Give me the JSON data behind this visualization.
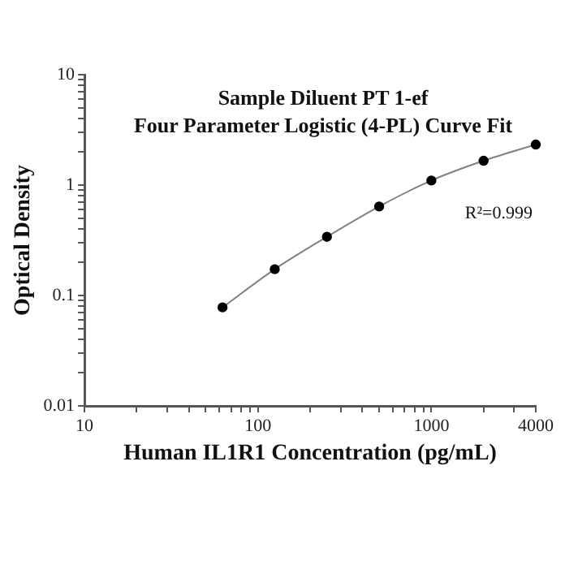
{
  "chart_data": {
    "type": "scatter",
    "title": "Sample Diluent PT 1-ef",
    "subtitle": "Four Parameter Logistic (4-PL) Curve Fit",
    "xlabel": "Human IL1R1 Concentration (pg/mL)",
    "ylabel": "Optical Density",
    "annotations": [
      "R²=0.999"
    ],
    "log": "xy",
    "grid": false,
    "legend": false,
    "marker": "circle",
    "x": [
      62.5,
      125,
      250,
      500,
      1000,
      2000,
      4000
    ],
    "series": [
      {
        "color": "#000000",
        "values": [
          0.078,
          0.173,
          0.34,
          0.64,
          1.1,
          1.66,
          2.33
        ]
      },
      {
        "type": "line",
        "color": "#808080",
        "marker": "none",
        "line_style": "solid",
        "values": [
          0.078,
          0.173,
          0.34,
          0.64,
          1.1,
          1.66,
          2.33
        ]
      }
    ],
    "xlim": [
      10,
      4000
    ],
    "ylim": [
      0.01,
      10
    ],
    "xticks": [
      10,
      {
        "value": 20,
        "label": null
      },
      {
        "value": 30,
        "label": null
      },
      {
        "value": 40,
        "label": null
      },
      {
        "value": 50,
        "label": null
      },
      {
        "value": 60,
        "label": null
      },
      {
        "value": 70,
        "label": null
      },
      {
        "value": 80,
        "label": null
      },
      {
        "value": 90,
        "label": null
      },
      100,
      {
        "value": 200,
        "label": null
      },
      {
        "value": 300,
        "label": null
      },
      {
        "value": 400,
        "label": null
      },
      {
        "value": 500,
        "label": null
      },
      {
        "value": 600,
        "label": null
      },
      {
        "value": 700,
        "label": null
      },
      {
        "value": 800,
        "label": null
      },
      {
        "value": 900,
        "label": null
      },
      1000,
      {
        "value": 2000,
        "label": null
      },
      {
        "value": 3000,
        "label": null
      },
      4000
    ],
    "yticks": [
      0.01,
      {
        "value": 0.02,
        "label": null
      },
      {
        "value": 0.03,
        "label": null
      },
      {
        "value": 0.04,
        "label": null
      },
      {
        "value": 0.05,
        "label": null
      },
      {
        "value": 0.06,
        "label": null
      },
      {
        "value": 0.07,
        "label": null
      },
      {
        "value": 0.08,
        "label": null
      },
      {
        "value": 0.09,
        "label": null
      },
      0.1,
      {
        "value": 0.2,
        "label": null
      },
      {
        "value": 0.3,
        "label": null
      },
      {
        "value": 0.4,
        "label": null
      },
      {
        "value": 0.5,
        "label": null
      },
      {
        "value": 0.6,
        "label": null
      },
      {
        "value": 0.7,
        "label": null
      },
      {
        "value": 0.8,
        "label": null
      },
      {
        "value": 0.9,
        "label": null
      },
      1,
      {
        "value": 2,
        "label": null
      },
      {
        "value": 3,
        "label": null
      },
      {
        "value": 4,
        "label": null
      },
      {
        "value": 5,
        "label": null
      },
      {
        "value": 6,
        "label": null
      },
      {
        "value": 7,
        "label": null
      },
      {
        "value": 8,
        "label": null
      },
      {
        "value": 9,
        "label": null
      },
      10
    ]
  }
}
